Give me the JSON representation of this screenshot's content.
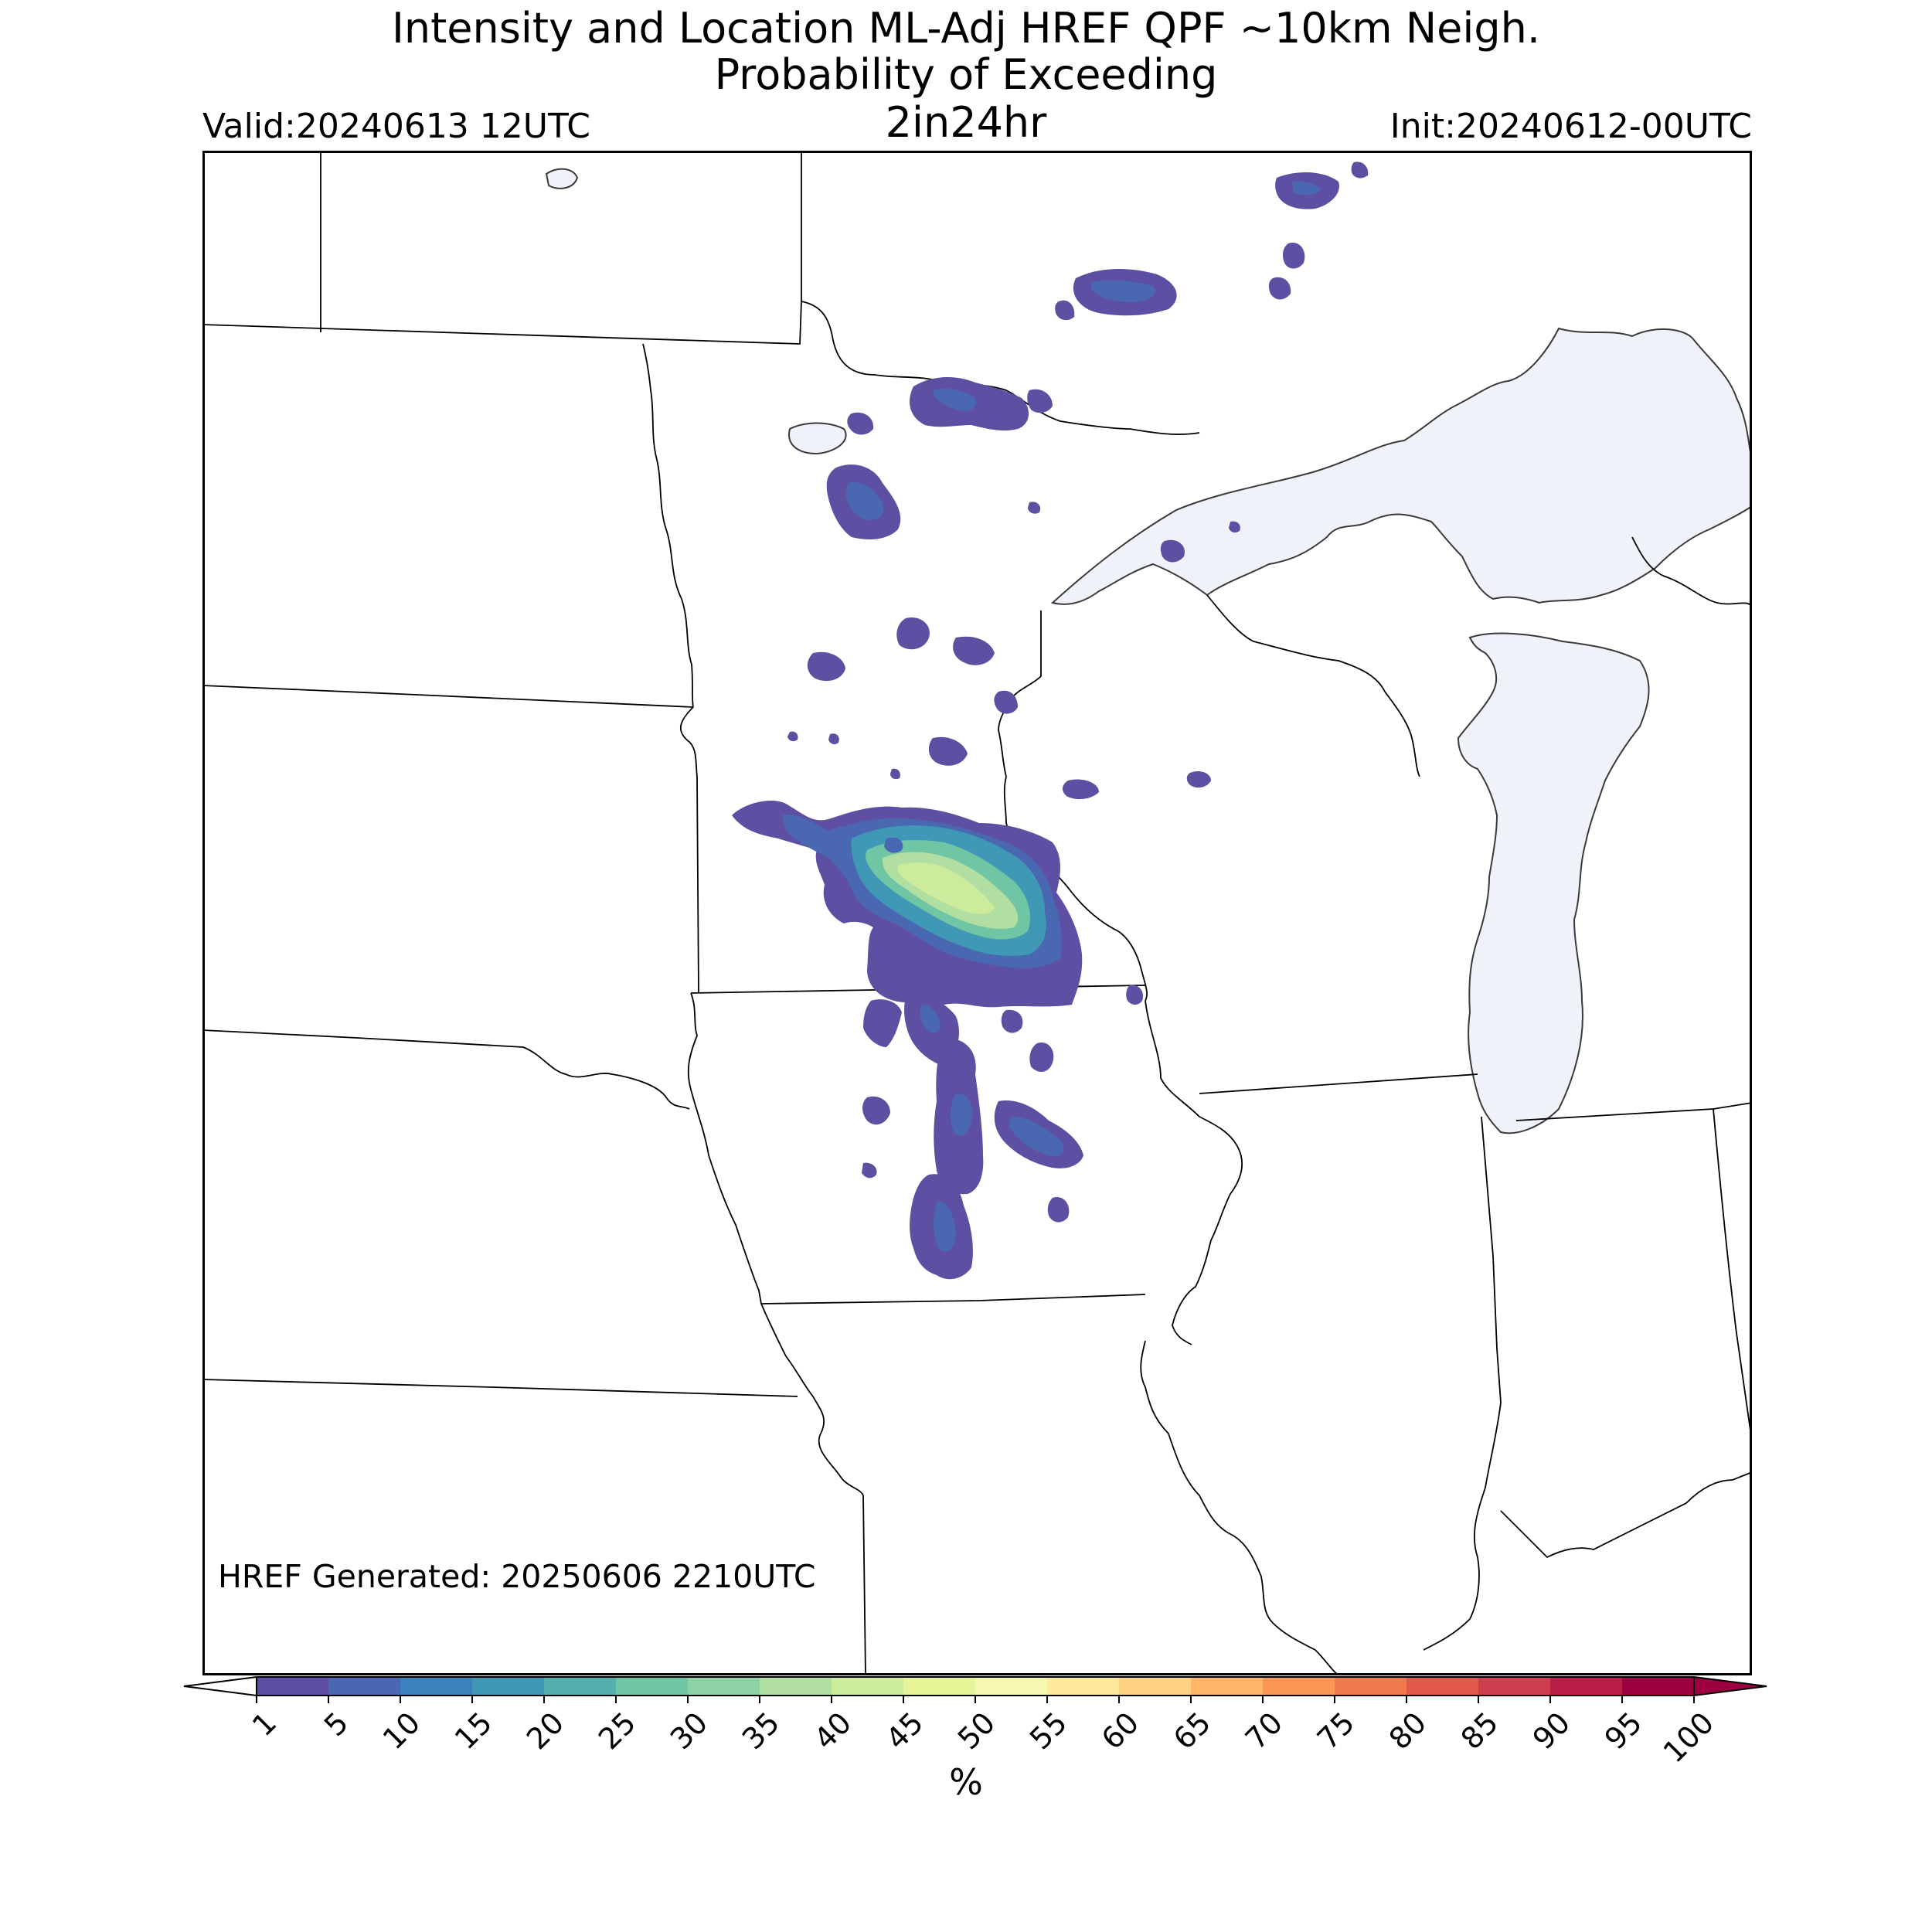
{
  "header": {
    "title_line1": "Intensity and Location ML-Adj HREF QPF ~10km Neigh.",
    "title_line2": "Probability of Exceeding",
    "title_line3": "2in24hr",
    "valid": "Valid:20240613 12UTC",
    "init": "Init:20240612-00UTC"
  },
  "map": {
    "generated_label": "HREF Generated: 20250606 2210UTC",
    "lake_color": "#eff3f9",
    "border_color": "#000000"
  },
  "colorbar": {
    "unit": "%",
    "ticks": [
      "1",
      "5",
      "10",
      "15",
      "20",
      "25",
      "30",
      "35",
      "40",
      "45",
      "50",
      "55",
      "60",
      "65",
      "70",
      "75",
      "80",
      "85",
      "90",
      "95",
      "100"
    ],
    "colors": [
      "#5e4fa2",
      "#4a67b1",
      "#3a82bb",
      "#3f98b5",
      "#53b0ae",
      "#6fc5a4",
      "#8dd2a4",
      "#b1dfa2",
      "#cdeb9d",
      "#e6f598",
      "#f6f8b0",
      "#fee99c",
      "#fdd181",
      "#fdb567",
      "#f99856",
      "#f07a4c",
      "#e25a4a",
      "#cf3e4e",
      "#b81e47",
      "#9e0142"
    ]
  }
}
